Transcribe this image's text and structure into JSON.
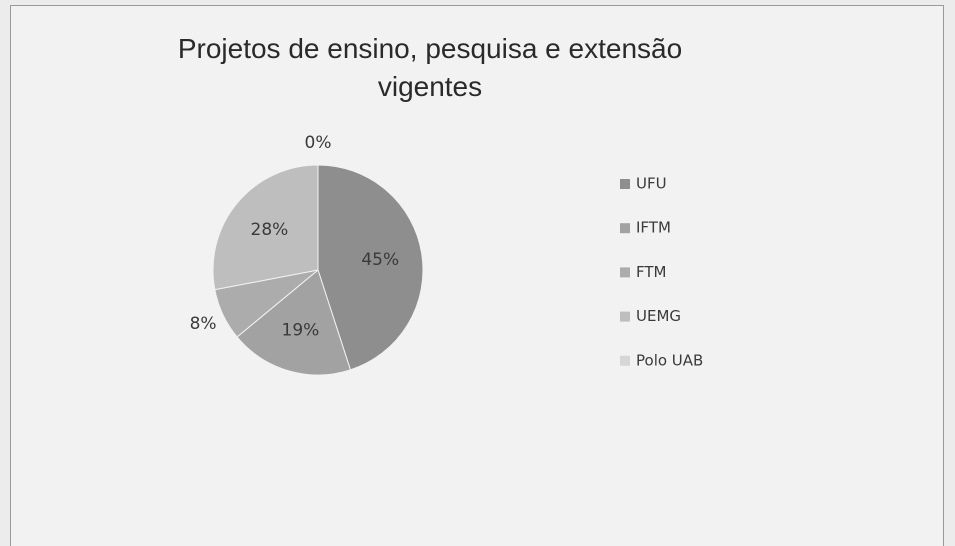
{
  "chart_data": {
    "type": "pie",
    "title": "Projetos de ensino, pesquisa e extensão vigentes",
    "categories": [
      "UFU",
      "IFTM",
      "FTM",
      "UEMG",
      "Polo UAB"
    ],
    "values": [
      45,
      19,
      8,
      28,
      0
    ],
    "value_labels": [
      "45%",
      "19%",
      "8%",
      "28%",
      "0%"
    ],
    "colors": [
      "#8e8e8e",
      "#a2a2a2",
      "#acacac",
      "#bebebe",
      "#d6d6d6"
    ],
    "legend": "right"
  }
}
